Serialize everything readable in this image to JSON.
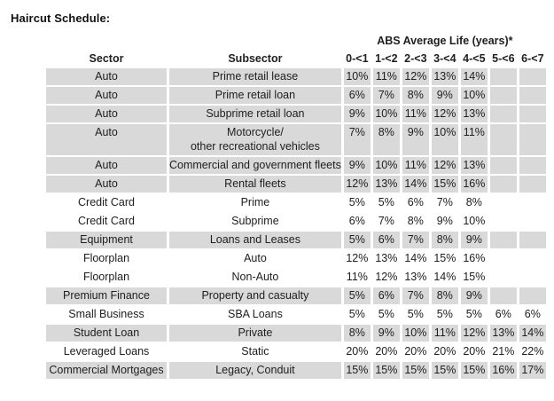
{
  "title": "Haircut Schedule:",
  "table": {
    "group_header": "ABS Average Life (years)*",
    "columns": [
      "Sector",
      "Subsector",
      "0-<1",
      "1-<2",
      "2-<3",
      "3-<4",
      "4-<5",
      "5-<6",
      "6-<7"
    ],
    "shade_color": "#d9d9d9",
    "rows": [
      {
        "sector": "Auto",
        "subsector": "Prime retail lease",
        "values": [
          "10%",
          "11%",
          "12%",
          "13%",
          "14%",
          "",
          ""
        ],
        "shaded": true
      },
      {
        "sector": "Auto",
        "subsector": "Prime retail loan",
        "values": [
          "6%",
          "7%",
          "8%",
          "9%",
          "10%",
          "",
          ""
        ],
        "shaded": true
      },
      {
        "sector": "Auto",
        "subsector": "Subprime retail loan",
        "values": [
          "9%",
          "10%",
          "11%",
          "12%",
          "13%",
          "",
          ""
        ],
        "shaded": true
      },
      {
        "sector": "Auto",
        "subsector": "Motorcycle/\nother recreational vehicles",
        "values": [
          "7%",
          "8%",
          "9%",
          "10%",
          "11%",
          "",
          ""
        ],
        "shaded": true
      },
      {
        "sector": "Auto",
        "subsector": "Commercial and government fleets",
        "values": [
          "9%",
          "10%",
          "11%",
          "12%",
          "13%",
          "",
          ""
        ],
        "shaded": true
      },
      {
        "sector": "Auto",
        "subsector": "Rental fleets",
        "values": [
          "12%",
          "13%",
          "14%",
          "15%",
          "16%",
          "",
          ""
        ],
        "shaded": true
      },
      {
        "sector": "Credit Card",
        "subsector": "Prime",
        "values": [
          "5%",
          "5%",
          "6%",
          "7%",
          "8%",
          "",
          ""
        ],
        "shaded": false
      },
      {
        "sector": "Credit Card",
        "subsector": "Subprime",
        "values": [
          "6%",
          "7%",
          "8%",
          "9%",
          "10%",
          "",
          ""
        ],
        "shaded": false
      },
      {
        "sector": "Equipment",
        "subsector": "Loans and Leases",
        "values": [
          "5%",
          "6%",
          "7%",
          "8%",
          "9%",
          "",
          ""
        ],
        "shaded": true
      },
      {
        "sector": "Floorplan",
        "subsector": "Auto",
        "values": [
          "12%",
          "13%",
          "14%",
          "15%",
          "16%",
          "",
          ""
        ],
        "shaded": false
      },
      {
        "sector": "Floorplan",
        "subsector": "Non-Auto",
        "values": [
          "11%",
          "12%",
          "13%",
          "14%",
          "15%",
          "",
          ""
        ],
        "shaded": false
      },
      {
        "sector": "Premium Finance",
        "subsector": "Property and casualty",
        "values": [
          "5%",
          "6%",
          "7%",
          "8%",
          "9%",
          "",
          ""
        ],
        "shaded": true
      },
      {
        "sector": "Small Business",
        "subsector": "SBA Loans",
        "values": [
          "5%",
          "5%",
          "5%",
          "5%",
          "5%",
          "6%",
          "6%"
        ],
        "shaded": false
      },
      {
        "sector": "Student Loan",
        "subsector": "Private",
        "values": [
          "8%",
          "9%",
          "10%",
          "11%",
          "12%",
          "13%",
          "14%"
        ],
        "shaded": true
      },
      {
        "sector": "Leveraged Loans",
        "subsector": "Static",
        "values": [
          "20%",
          "20%",
          "20%",
          "20%",
          "20%",
          "21%",
          "22%"
        ],
        "shaded": false
      },
      {
        "sector": "Commercial Mortgages",
        "subsector": "Legacy, Conduit",
        "values": [
          "15%",
          "15%",
          "15%",
          "15%",
          "15%",
          "16%",
          "17%"
        ],
        "shaded": true
      }
    ]
  }
}
